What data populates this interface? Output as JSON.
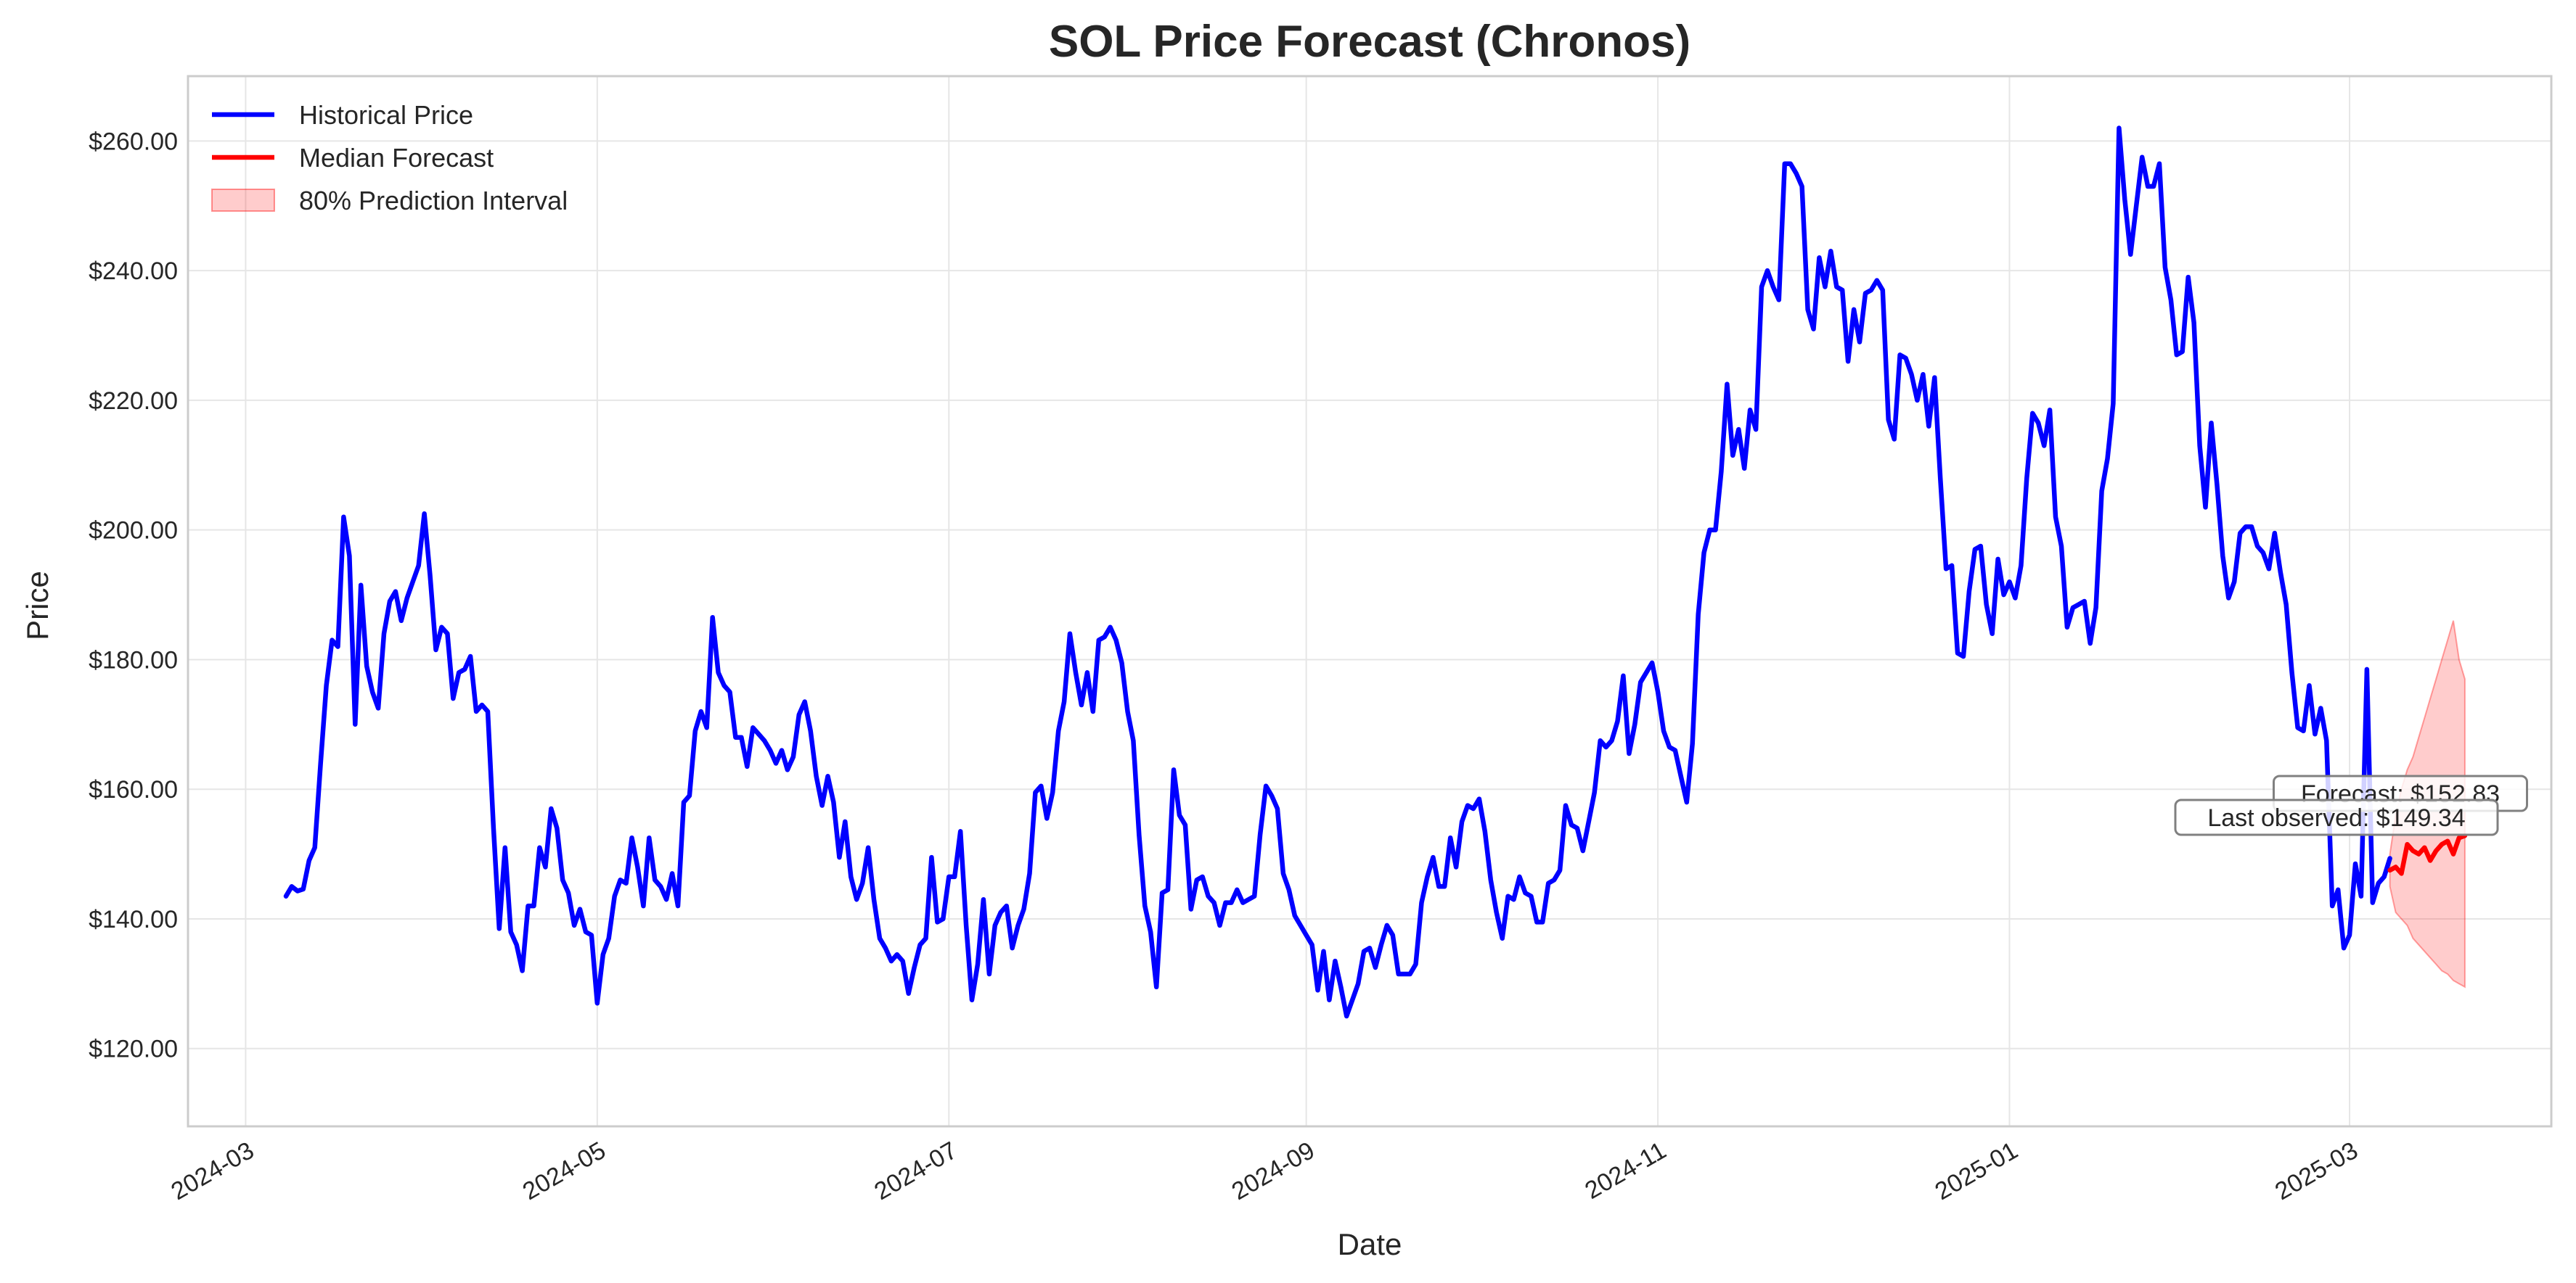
{
  "chart_data": {
    "type": "line",
    "title": "SOL Price Forecast (Chronos)",
    "xlabel": "Date",
    "ylabel": "Price",
    "x_tick_labels": [
      "2024-03",
      "2024-05",
      "2024-07",
      "2024-09",
      "2024-11",
      "2025-01",
      "2025-03"
    ],
    "x_tick_dates": [
      "2024-03-01",
      "2024-05-01",
      "2024-07-01",
      "2024-09-01",
      "2024-11-01",
      "2025-01-01",
      "2025-03-01"
    ],
    "y_tick_values": [
      120,
      140,
      160,
      180,
      200,
      220,
      240,
      260
    ],
    "y_tick_labels": [
      "$120.00",
      "$140.00",
      "$160.00",
      "$180.00",
      "$200.00",
      "$220.00",
      "$240.00",
      "$260.00"
    ],
    "xlim": [
      "2024-02-20",
      "2025-04-05"
    ],
    "ylim": [
      108,
      270
    ],
    "grid": true,
    "legend": {
      "position": "top-left",
      "entries": [
        {
          "label": "Historical Price",
          "color": "#0000ff",
          "kind": "line"
        },
        {
          "label": "Median Forecast",
          "color": "#ff0000",
          "kind": "line"
        },
        {
          "label": "80% Prediction Interval",
          "color": "#ff0000",
          "kind": "band"
        }
      ]
    },
    "annotations": [
      {
        "text": "Forecast: $152.83",
        "x": "2025-03-21",
        "y": 152.83
      },
      {
        "text": "Last observed: $149.34",
        "x": "2025-03-08",
        "y": 149.34
      }
    ],
    "series": [
      {
        "name": "Historical Price",
        "color": "#0000ff",
        "start_date": "2024-03-08",
        "step_days": 1,
        "values": [
          143.5,
          145.0,
          144.3,
          144.6,
          149.0,
          151.0,
          164.0,
          176.0,
          183.0,
          182.0,
          202.0,
          196.0,
          170.0,
          191.5,
          179.0,
          175.0,
          172.5,
          184.0,
          189.0,
          190.5,
          186.0,
          189.5,
          192.0,
          194.5,
          202.5,
          193.0,
          181.5,
          185.0,
          184.0,
          174.0,
          178.0,
          178.5,
          180.5,
          172.0,
          173.0,
          172.0,
          154.0,
          138.5,
          151.0,
          138.0,
          136.0,
          132.0,
          142.0,
          142.0,
          151.0,
          148.0,
          157.0,
          154.0,
          146.0,
          144.0,
          139.0,
          141.5,
          138.0,
          137.5,
          127.0,
          134.5,
          137.0,
          143.5,
          146.0,
          145.5,
          152.5,
          148.0,
          142.0,
          152.5,
          146.0,
          145.0,
          143.0,
          147.0,
          142.0,
          158.0,
          159.0,
          169.0,
          172.0,
          169.5,
          186.5,
          178.0,
          176.0,
          175.0,
          168.0,
          168.0,
          163.5,
          169.5,
          168.5,
          167.5,
          166.0,
          164.0,
          166.0,
          163.0,
          165.0,
          171.5,
          173.5,
          169.0,
          162.0,
          157.5,
          162.0,
          158.0,
          149.5,
          155.0,
          146.5,
          143.0,
          145.5,
          151.0,
          143.0,
          137.0,
          135.5,
          133.5,
          134.5,
          133.5,
          128.5,
          132.5,
          136.0,
          137.0,
          149.5,
          139.5,
          140.0,
          146.5,
          146.5,
          153.5,
          139.0,
          127.5,
          133.0,
          143.0,
          131.5,
          139.0,
          141.0,
          142.0,
          135.5,
          139.0,
          141.5,
          147.0,
          159.5,
          160.5,
          155.5,
          159.5,
          169.0,
          173.5,
          184.0,
          178.0,
          173.0,
          178.0,
          172.0,
          183.0,
          183.5,
          185.0,
          183.0,
          179.5,
          172.0,
          167.5,
          153.0,
          142.0,
          138.0,
          129.5,
          144.0,
          144.5,
          163.0,
          156.0,
          154.5,
          141.5,
          146.0,
          146.5,
          143.5,
          142.5,
          139.0,
          142.5,
          142.5,
          144.5,
          142.5,
          143.0,
          143.5,
          153.0,
          160.5,
          159.0,
          157.0,
          147.0,
          144.5,
          140.5,
          139.0,
          137.5,
          136.0,
          129.0,
          135.0,
          127.5,
          133.5,
          129.5,
          125.0,
          127.5,
          130.0,
          135.0,
          135.5,
          132.5,
          136.0,
          139.0,
          137.5,
          131.5,
          131.5,
          131.5,
          133.0,
          142.5,
          146.5,
          149.5,
          145.0,
          145.0,
          152.5,
          148.0,
          155.0,
          157.5,
          157.0,
          158.5,
          153.5,
          146.0,
          141.0,
          137.0,
          143.5,
          143.0,
          146.5,
          144.0,
          143.5,
          139.5,
          139.5,
          145.5,
          146.0,
          147.5,
          157.5,
          154.5,
          154.0,
          150.5,
          155.0,
          159.5,
          167.5,
          166.5,
          167.5,
          170.5,
          177.5,
          165.5,
          170.0,
          176.5,
          178.0,
          179.5,
          175.0,
          169.0,
          166.5,
          166.0,
          162.0,
          158.0,
          167.0,
          187.0,
          196.5,
          200.0,
          200.0,
          209.0,
          222.5,
          211.5,
          215.5,
          209.5,
          218.5,
          215.5,
          237.5,
          240.0,
          237.5,
          235.5,
          256.5,
          256.5,
          255.0,
          253.0,
          234.0,
          231.0,
          242.0,
          237.5,
          243.0,
          237.5,
          237.0,
          226.0,
          234.0,
          229.0,
          236.5,
          237.0,
          238.5,
          237.0,
          217.0,
          214.0,
          227.0,
          226.5,
          224.0,
          220.0,
          224.0,
          216.0,
          223.5,
          208.0,
          194.0,
          194.5,
          181.0,
          180.5,
          190.5,
          197.0,
          197.5,
          188.5,
          184.0,
          195.5,
          190.0,
          192.0,
          189.5,
          194.5,
          208.0,
          218.0,
          216.5,
          213.0,
          218.5,
          202.0,
          197.5,
          185.0,
          188.0,
          188.5,
          189.0,
          182.5,
          188.0,
          206.0,
          211.0,
          219.5,
          262.0,
          251.0,
          242.5,
          250.0,
          257.5,
          253.0,
          253.0,
          256.5,
          240.5,
          235.5,
          227.0,
          227.5,
          239.0,
          232.0,
          213.0,
          203.5,
          216.5,
          207.0,
          196.0,
          189.5,
          192.0,
          199.5,
          200.5,
          200.5,
          197.5,
          196.5,
          194.0,
          199.5,
          193.5,
          188.5,
          178.0,
          169.5,
          169.0,
          176.0,
          168.5,
          172.5,
          167.5,
          142.0,
          144.5,
          135.5,
          137.5,
          148.5,
          143.5,
          178.5,
          142.5,
          145.5,
          146.5,
          149.34
        ]
      },
      {
        "name": "Median Forecast",
        "color": "#ff0000",
        "start_date": "2025-03-08",
        "step_days": 1,
        "values": [
          147.5,
          148.0,
          147.0,
          151.5,
          150.5,
          150.0,
          151.0,
          149.0,
          150.5,
          151.5,
          152.0,
          150.0,
          152.5,
          152.83
        ]
      },
      {
        "name": "80% Prediction Interval",
        "color": "#ff0000",
        "start_date": "2025-03-08",
        "step_days": 1,
        "lower": [
          145.0,
          141.0,
          140.0,
          139.0,
          137.0,
          136.0,
          135.0,
          134.0,
          133.0,
          132.0,
          131.5,
          130.5,
          130.0,
          129.5
        ],
        "upper": [
          150.0,
          156.0,
          160.0,
          163.0,
          165.0,
          168.0,
          171.0,
          174.0,
          177.0,
          180.0,
          183.0,
          186.0,
          180.0,
          177.0
        ]
      }
    ]
  }
}
